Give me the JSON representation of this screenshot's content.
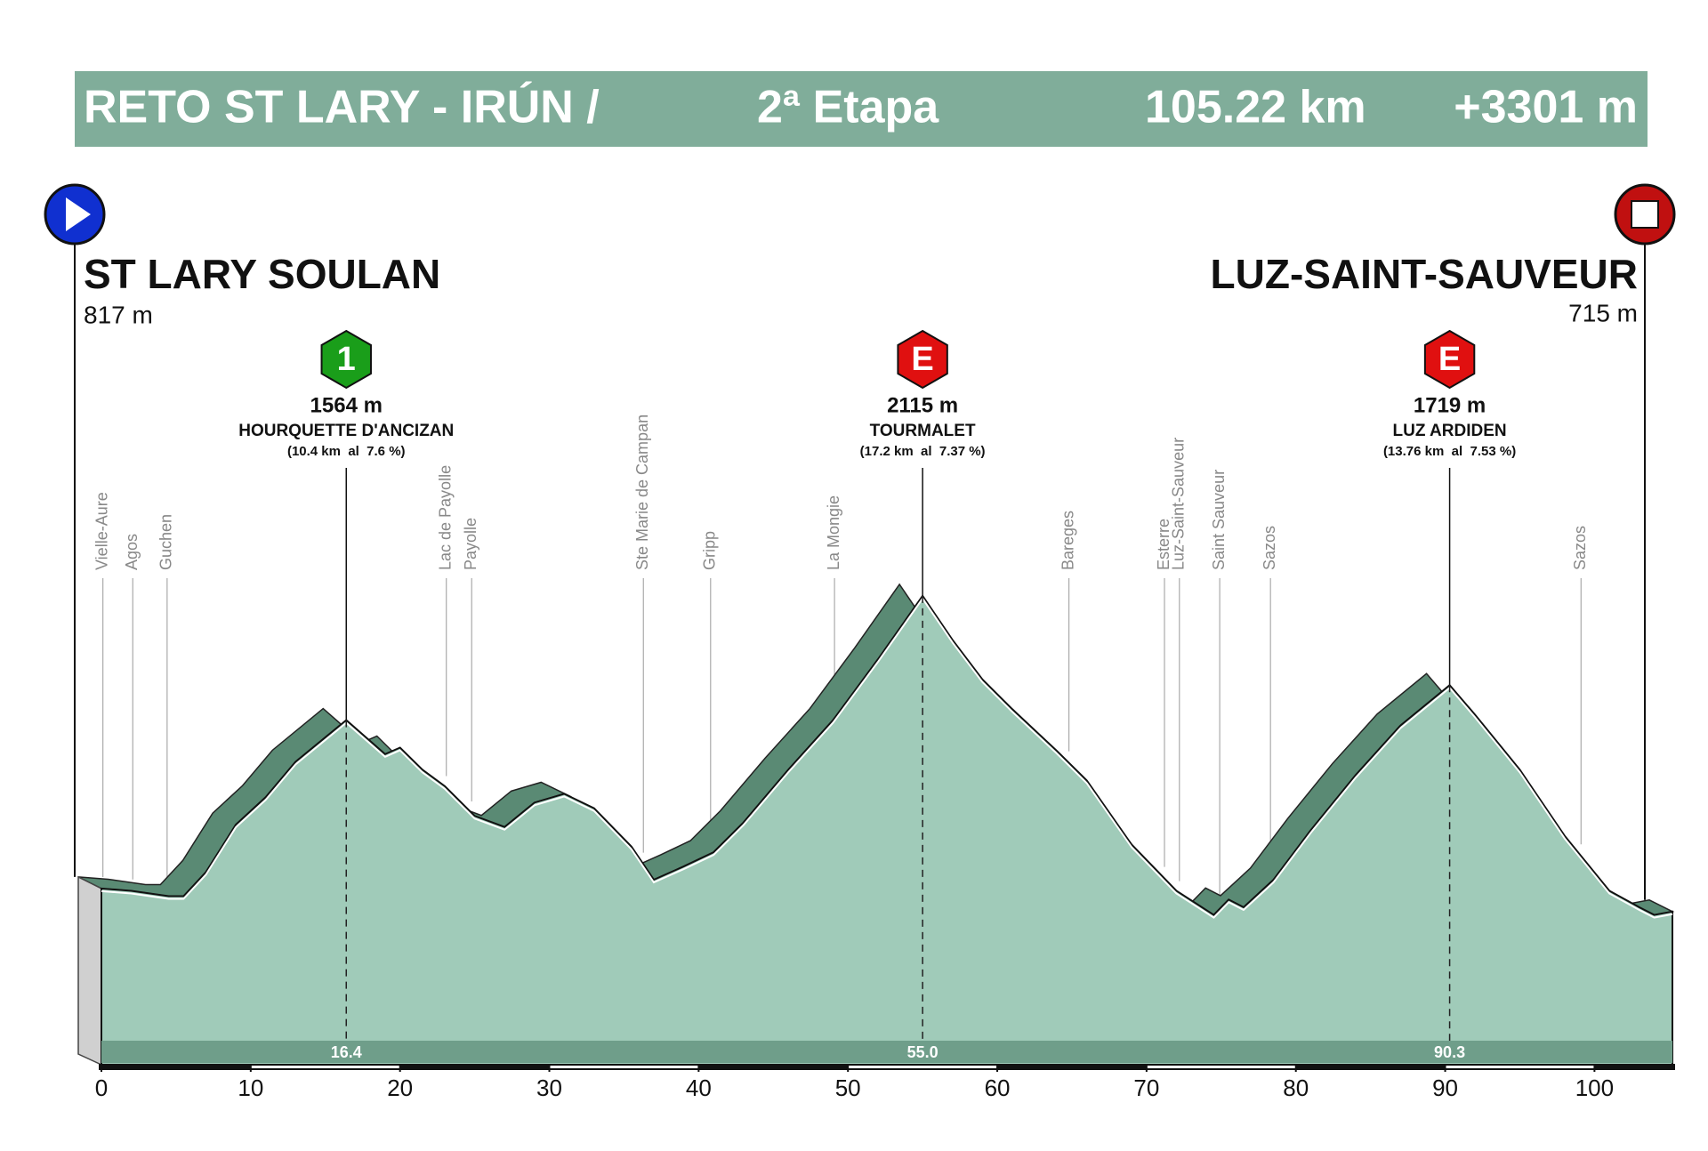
{
  "chart_data": {
    "type": "area",
    "header": {
      "route": "RETO ST LARY - IRÚN /",
      "stage": "2ª Etapa",
      "distance": "105.22 km",
      "climbing": "+3301 m"
    },
    "start": {
      "name": "ST LARY SOULAN",
      "elevation_label": "817 m"
    },
    "finish": {
      "name": "LUZ-SAINT-SAUVEUR",
      "elevation_label": "715 m"
    },
    "color": "#a0cbb9",
    "x": [
      0,
      2,
      4.5,
      5.5,
      7,
      9,
      11,
      13,
      16.4,
      17.5,
      19,
      20,
      21.5,
      23,
      25,
      27,
      29,
      31,
      33,
      35.5,
      37,
      39,
      41,
      43,
      46,
      49,
      52,
      55,
      57,
      59,
      61,
      64,
      66,
      69,
      72,
      74.5,
      75.5,
      76.5,
      78.5,
      81,
      84,
      87,
      90.3,
      92,
      95,
      98,
      101,
      103,
      104,
      105.22
    ],
    "values": [
      817,
      807,
      783,
      783,
      890,
      1100,
      1222,
      1379,
      1564,
      1500,
      1413,
      1442,
      1344,
      1271,
      1139,
      1090,
      1198,
      1237,
      1173,
      1003,
      856,
      915,
      978,
      1110,
      1344,
      1564,
      1833,
      2115,
      1920,
      1745,
      1613,
      1427,
      1296,
      1012,
      807,
      700,
      768,
      734,
      856,
      1076,
      1320,
      1540,
      1719,
      1588,
      1344,
      1051,
      807,
      734,
      700,
      715
    ],
    "xlim": [
      0,
      105.22
    ],
    "xticks": [
      0,
      10,
      20,
      30,
      40,
      50,
      60,
      70,
      80,
      90,
      100
    ],
    "ylim": [
      0,
      2600
    ],
    "places": [
      {
        "name": "Vielle-Aure",
        "km": 0.1
      },
      {
        "name": "Agos",
        "km": 2.1
      },
      {
        "name": "Guchen",
        "km": 4.4
      },
      {
        "name": "Lac de Payolle",
        "km": 23.1
      },
      {
        "name": "Payolle",
        "km": 24.8
      },
      {
        "name": "Ste Marie de Campan",
        "km": 36.3
      },
      {
        "name": "Gripp",
        "km": 40.8
      },
      {
        "name": "La Mongie",
        "km": 49.1
      },
      {
        "name": "Bareges",
        "km": 64.8
      },
      {
        "name": "Esterre",
        "km": 71.2
      },
      {
        "name": "Luz-Saint-Sauveur",
        "km": 72.2
      },
      {
        "name": "Saint Sauveur",
        "km": 74.9
      },
      {
        "name": "Sazos",
        "km": 78.3
      },
      {
        "name": "Sazos",
        "km": 99.1
      }
    ],
    "climbs": [
      {
        "category": "1",
        "color": "#1a9e1a",
        "elevation": 1564,
        "elevation_label": "1564 m",
        "name": "HOURQUETTE D'ANCIZAN",
        "detail": "(10.4 km  al  7.6 %)",
        "km": 16.4,
        "km_label": "16.4"
      },
      {
        "category": "E",
        "color": "#e01010",
        "elevation": 2115,
        "elevation_label": "2115 m",
        "name": "TOURMALET",
        "detail": "(17.2 km  al  7.37 %)",
        "km": 55,
        "km_label": "55.0"
      },
      {
        "category": "E",
        "color": "#e01010",
        "elevation": 1719,
        "elevation_label": "1719 m",
        "name": "LUZ ARDIDEN",
        "detail": "(13.76 km  al  7.53 %)",
        "km": 90.3,
        "km_label": "90.3"
      }
    ]
  }
}
